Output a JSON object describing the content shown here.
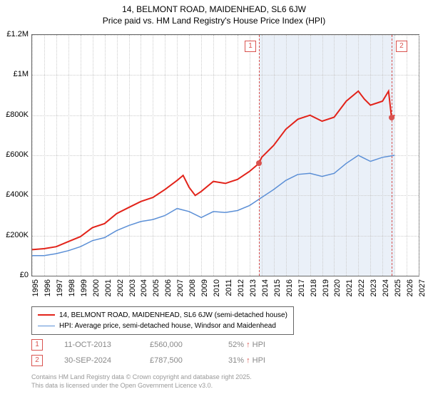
{
  "title_line1": "14, BELMONT ROAD, MAIDENHEAD, SL6 6JW",
  "title_line2": "Price paid vs. HM Land Registry's House Price Index (HPI)",
  "y_axis": {
    "min": 0,
    "max": 1200000,
    "step": 200000,
    "labels": [
      "£0",
      "£200K",
      "£400K",
      "£600K",
      "£800K",
      "£1M",
      "£1.2M"
    ]
  },
  "x_axis": {
    "min": 1995,
    "max": 2027,
    "step": 1,
    "labels": [
      "1995",
      "1996",
      "1997",
      "1998",
      "1999",
      "2000",
      "2001",
      "2002",
      "2003",
      "2004",
      "2005",
      "2006",
      "2007",
      "2008",
      "2009",
      "2010",
      "2011",
      "2012",
      "2013",
      "2014",
      "2015",
      "2016",
      "2017",
      "2018",
      "2019",
      "2020",
      "2021",
      "2022",
      "2023",
      "2024",
      "2025",
      "2026",
      "2027"
    ]
  },
  "shade_region": {
    "x_start": 2013.78,
    "x_end": 2025.0
  },
  "series": {
    "property": {
      "label": "14, BELMONT ROAD, MAIDENHEAD, SL6 6JW (semi-detached house)",
      "color": "#e2231a",
      "width": 2,
      "points": [
        [
          1995,
          130000
        ],
        [
          1996,
          135000
        ],
        [
          1997,
          145000
        ],
        [
          1998,
          170000
        ],
        [
          1999,
          195000
        ],
        [
          2000,
          240000
        ],
        [
          2001,
          260000
        ],
        [
          2002,
          310000
        ],
        [
          2003,
          340000
        ],
        [
          2004,
          370000
        ],
        [
          2005,
          390000
        ],
        [
          2006,
          430000
        ],
        [
          2007,
          475000
        ],
        [
          2007.5,
          500000
        ],
        [
          2008,
          440000
        ],
        [
          2008.5,
          400000
        ],
        [
          2009,
          420000
        ],
        [
          2010,
          470000
        ],
        [
          2011,
          460000
        ],
        [
          2012,
          480000
        ],
        [
          2013,
          520000
        ],
        [
          2013.78,
          560000
        ],
        [
          2014,
          590000
        ],
        [
          2015,
          650000
        ],
        [
          2016,
          730000
        ],
        [
          2017,
          780000
        ],
        [
          2018,
          800000
        ],
        [
          2019,
          770000
        ],
        [
          2020,
          790000
        ],
        [
          2021,
          870000
        ],
        [
          2022,
          920000
        ],
        [
          2022.5,
          880000
        ],
        [
          2023,
          850000
        ],
        [
          2024,
          870000
        ],
        [
          2024.5,
          920000
        ],
        [
          2024.75,
          787500
        ],
        [
          2025,
          800000
        ]
      ]
    },
    "hpi": {
      "label": "HPI: Average price, semi-detached house, Windsor and Maidenhead",
      "color": "#5b8fd6",
      "width": 1.5,
      "points": [
        [
          1995,
          100000
        ],
        [
          1996,
          100000
        ],
        [
          1997,
          110000
        ],
        [
          1998,
          125000
        ],
        [
          1999,
          145000
        ],
        [
          2000,
          175000
        ],
        [
          2001,
          190000
        ],
        [
          2002,
          225000
        ],
        [
          2003,
          250000
        ],
        [
          2004,
          270000
        ],
        [
          2005,
          280000
        ],
        [
          2006,
          300000
        ],
        [
          2007,
          335000
        ],
        [
          2008,
          320000
        ],
        [
          2009,
          290000
        ],
        [
          2010,
          320000
        ],
        [
          2011,
          315000
        ],
        [
          2012,
          325000
        ],
        [
          2013,
          350000
        ],
        [
          2014,
          390000
        ],
        [
          2015,
          430000
        ],
        [
          2016,
          475000
        ],
        [
          2017,
          505000
        ],
        [
          2018,
          510000
        ],
        [
          2019,
          495000
        ],
        [
          2020,
          510000
        ],
        [
          2021,
          560000
        ],
        [
          2022,
          600000
        ],
        [
          2023,
          570000
        ],
        [
          2024,
          590000
        ],
        [
          2025,
          600000
        ]
      ]
    }
  },
  "markers": [
    {
      "n": "1",
      "x": 2013.78,
      "y": 560000,
      "date": "11-OCT-2013",
      "price": "£560,000",
      "pct": "52%",
      "arrow": "↑",
      "suffix": "HPI"
    },
    {
      "n": "2",
      "x": 2024.75,
      "y": 787500,
      "date": "30-SEP-2024",
      "price": "£787,500",
      "pct": "31%",
      "arrow": "↑",
      "suffix": "HPI"
    }
  ],
  "footer_line1": "Contains HM Land Registry data © Crown copyright and database right 2025.",
  "footer_line2": "This data is licensed under the Open Government Licence v3.0.",
  "colors": {
    "grid": "#cccccc",
    "border": "#666666",
    "text_muted": "#888888",
    "shade": "#eaf0f8"
  }
}
